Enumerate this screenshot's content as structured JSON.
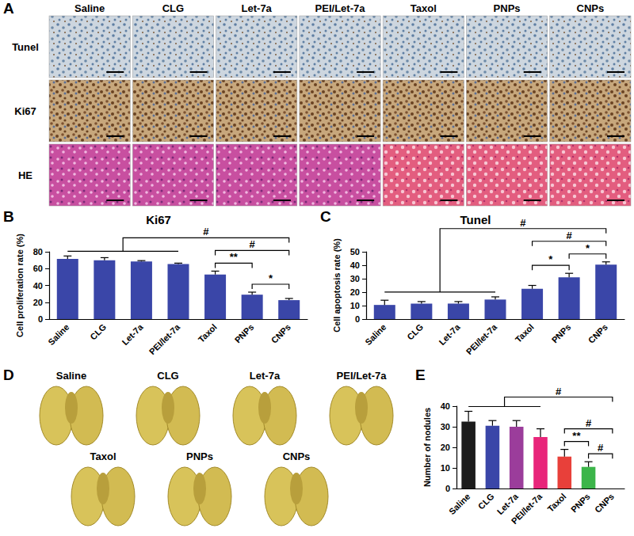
{
  "chart_data": [
    {
      "panel": "B",
      "type": "bar",
      "title": "Ki67",
      "y_label": "Cell proliferation rate (%)",
      "categories": [
        "Saline",
        "CLG",
        "Let-7a",
        "PEI/let-7a",
        "Taxol",
        "PNPs",
        "CNPs"
      ],
      "values": [
        71.5,
        70,
        68.5,
        65.5,
        53,
        29,
        22.5
      ],
      "errors": [
        3.5,
        3,
        1,
        1,
        4,
        3,
        2
      ],
      "color": "#3a46a8",
      "ylim": [
        0,
        80
      ],
      "yticks": [
        0,
        20,
        40,
        60,
        80
      ],
      "grid": false,
      "annotations": [
        {
          "text": "**",
          "from": "Taxol",
          "to": "PNPs"
        },
        {
          "text": "*",
          "from": "PNPs",
          "to": "CNPs"
        },
        {
          "text": "#",
          "from": "Taxol",
          "to": "CNPs"
        },
        {
          "text": "#",
          "from": [
            "Saline",
            "PEI/let-7a"
          ],
          "to": "CNPs"
        }
      ]
    },
    {
      "panel": "C",
      "type": "bar",
      "title": "Tunel",
      "y_label": "Cell apoptosis rate (%)",
      "categories": [
        "Saline",
        "CLG",
        "Let-7a",
        "PEI/let-7a",
        "Taxol",
        "PNPs",
        "CNPs"
      ],
      "values": [
        10.5,
        11.5,
        11.5,
        14.5,
        22.5,
        31,
        40.5
      ],
      "errors": [
        3.5,
        1.5,
        1.5,
        2,
        2.5,
        3,
        2
      ],
      "color": "#3a46a8",
      "ylim": [
        0,
        50
      ],
      "yticks": [
        0,
        10,
        20,
        30,
        40,
        50
      ],
      "grid": false,
      "annotations": [
        {
          "text": "*",
          "from": "Taxol",
          "to": "PNPs"
        },
        {
          "text": "*",
          "from": "PNPs",
          "to": "CNPs"
        },
        {
          "text": "#",
          "from": "Taxol",
          "to": "CNPs"
        },
        {
          "text": "#",
          "from": [
            "Saline",
            "PEI/let-7a"
          ],
          "to": "CNPs"
        }
      ]
    },
    {
      "panel": "E",
      "type": "bar",
      "y_label": "Number of nodules",
      "categories": [
        "Saline",
        "CLG",
        "Let-7a",
        "PEI/let-7a",
        "Taxol",
        "PNPs",
        "CNPs"
      ],
      "values": [
        32.5,
        30.5,
        30,
        25,
        15.5,
        10.5,
        0
      ],
      "errors": [
        5,
        2.5,
        3,
        4,
        3.5,
        2.5,
        0
      ],
      "colors": [
        "#1c1c1c",
        "#3a46a8",
        "#9b3d9b",
        "#e8257a",
        "#e8403a",
        "#3cb54a",
        "#3cb54a"
      ],
      "ylim": [
        0,
        40
      ],
      "yticks": [
        0,
        10,
        20,
        30,
        40
      ],
      "grid": false,
      "annotations": [
        {
          "text": "**",
          "from": "Taxol",
          "to": "PNPs"
        },
        {
          "text": "#",
          "from": "PNPs",
          "to": "CNPs"
        },
        {
          "text": "#",
          "from": "Taxol",
          "to": "CNPs"
        },
        {
          "text": "#",
          "from": [
            "Saline",
            "PEI/let-7a"
          ],
          "to": "CNPs"
        }
      ]
    }
  ],
  "figure_panels": [
    {
      "panel": "A",
      "columns": [
        "Saline",
        "CLG",
        "Let-7a",
        "PEI/Let-7a",
        "Taxol",
        "PNPs",
        "CNPs"
      ],
      "rows": [
        "Tunel",
        "Ki67",
        "HE"
      ]
    },
    {
      "panel": "D",
      "labels": [
        "Saline",
        "CLG",
        "Let-7a",
        "PEI/Let-7a",
        "Taxol",
        "PNPs",
        "CNPs"
      ]
    }
  ]
}
